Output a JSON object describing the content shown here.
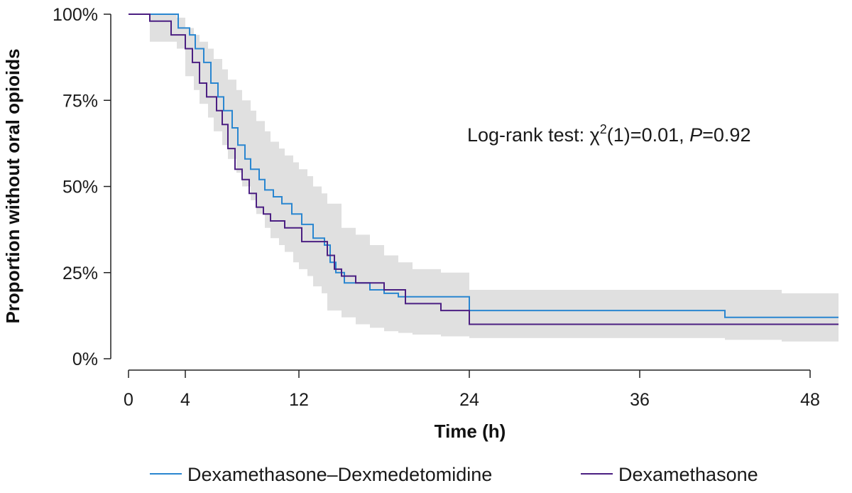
{
  "chart_data": {
    "type": "line",
    "subtype": "kaplan-meier step",
    "xlabel": "Time (h)",
    "ylabel": "Proportion without oral opioids",
    "xlim": [
      -1,
      50
    ],
    "ylim": [
      0,
      1
    ],
    "xticks": [
      0,
      4,
      12,
      24,
      36,
      48
    ],
    "yticks": [
      {
        "value": 0,
        "label": "0%"
      },
      {
        "value": 0.25,
        "label": "25%"
      },
      {
        "value": 0.5,
        "label": "50%"
      },
      {
        "value": 0.75,
        "label": "75%"
      },
      {
        "value": 1,
        "label": "100%"
      }
    ],
    "grid": false,
    "legend_position": "bottom",
    "annotation": {
      "prefix": "Log-rank test: ",
      "chi": "χ",
      "superscript": "2",
      "middle": "(1)=0.01, ",
      "p": "P",
      "suffix": "=0.92"
    },
    "confidence_band": {
      "color": "#e0e0e0",
      "x": [
        0,
        1.5,
        3.4,
        4,
        4.6,
        5,
        5.6,
        6,
        6.6,
        7,
        7.6,
        8,
        8.6,
        9,
        9.6,
        10,
        10.6,
        11,
        11.6,
        12,
        12.6,
        13,
        13.6,
        14,
        15,
        16,
        17,
        18,
        19,
        20,
        22,
        24,
        30,
        36,
        42,
        46,
        50
      ],
      "upper": [
        1,
        1,
        0.99,
        0.96,
        0.94,
        0.92,
        0.9,
        0.87,
        0.84,
        0.81,
        0.78,
        0.75,
        0.72,
        0.69,
        0.66,
        0.63,
        0.61,
        0.59,
        0.57,
        0.55,
        0.53,
        0.5,
        0.48,
        0.45,
        0.38,
        0.36,
        0.33,
        0.3,
        0.28,
        0.26,
        0.25,
        0.2,
        0.2,
        0.2,
        0.2,
        0.19,
        0.18
      ],
      "lower": [
        1,
        0.92,
        0.9,
        0.82,
        0.78,
        0.74,
        0.7,
        0.66,
        0.62,
        0.58,
        0.54,
        0.5,
        0.46,
        0.42,
        0.38,
        0.35,
        0.33,
        0.31,
        0.28,
        0.26,
        0.24,
        0.21,
        0.19,
        0.14,
        0.12,
        0.1,
        0.09,
        0.08,
        0.075,
        0.07,
        0.065,
        0.06,
        0.06,
        0.06,
        0.055,
        0.05,
        0.05
      ]
    },
    "series": [
      {
        "name": "Dexamethasone–Dexmedetomidine",
        "color": "#2a86d0",
        "x": [
          0,
          1.5,
          3.5,
          4.3,
          4.7,
          5.3,
          5.8,
          6.3,
          6.7,
          7.3,
          7.7,
          8.2,
          8.6,
          9.2,
          9.6,
          10.2,
          10.8,
          11.5,
          12.2,
          13.0,
          13.8,
          14.2,
          14.6,
          15.2,
          16.0,
          17.0,
          18.0,
          19.0,
          22.5,
          24.0,
          42.0,
          50.0
        ],
        "y": [
          1.0,
          1.0,
          0.96,
          0.94,
          0.9,
          0.86,
          0.8,
          0.76,
          0.72,
          0.67,
          0.62,
          0.58,
          0.55,
          0.52,
          0.49,
          0.47,
          0.45,
          0.42,
          0.39,
          0.35,
          0.33,
          0.28,
          0.25,
          0.22,
          0.22,
          0.2,
          0.19,
          0.18,
          0.18,
          0.14,
          0.12,
          0.12
        ]
      },
      {
        "name": "Dexamethasone",
        "color": "#4b1f82",
        "x": [
          0,
          1.5,
          3.0,
          4.0,
          4.5,
          5.0,
          5.5,
          6.2,
          6.6,
          7.0,
          7.5,
          8.0,
          8.5,
          9.0,
          9.5,
          10.0,
          11.0,
          12.2,
          14.0,
          14.5,
          15.0,
          16.0,
          18.0,
          19.5,
          22.0,
          24.0,
          50.0
        ],
        "y": [
          1.0,
          0.98,
          0.94,
          0.9,
          0.86,
          0.8,
          0.76,
          0.72,
          0.68,
          0.61,
          0.55,
          0.52,
          0.48,
          0.44,
          0.42,
          0.4,
          0.38,
          0.34,
          0.3,
          0.26,
          0.24,
          0.22,
          0.2,
          0.16,
          0.14,
          0.1,
          0.1
        ]
      }
    ]
  }
}
